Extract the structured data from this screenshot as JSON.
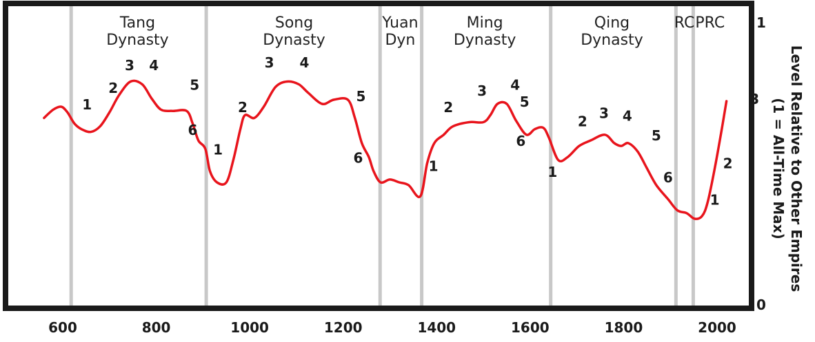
{
  "chart_data": {
    "type": "line",
    "ylabel_line1": "Level Relative to Other Empires",
    "ylabel_line2": "(1 = All-Time Max)",
    "xlim": [
      560,
      2030
    ],
    "ylim": [
      0,
      1
    ],
    "x_ticks": [
      {
        "value": 600,
        "label": "600"
      },
      {
        "value": 800,
        "label": "800"
      },
      {
        "value": 1000,
        "label": "1000"
      },
      {
        "value": 1200,
        "label": "1200"
      },
      {
        "value": 1400,
        "label": "1400"
      },
      {
        "value": 1600,
        "label": "1600"
      },
      {
        "value": 1800,
        "label": "1800"
      },
      {
        "value": 2000,
        "label": "2000"
      }
    ],
    "y_ticks": [
      {
        "value": 1,
        "label": "1"
      },
      {
        "value": 0,
        "label": "0"
      }
    ],
    "dynasty_boundaries": [
      618,
      907,
      1279,
      1368,
      1644,
      1912,
      1949
    ],
    "dynasty_labels": [
      {
        "lines": [
          "Tang",
          "Dynasty"
        ],
        "x": 760
      },
      {
        "lines": [
          "Song",
          "Dynasty"
        ],
        "x": 1095
      },
      {
        "lines": [
          "Yuan",
          "Dyn"
        ],
        "x": 1322
      },
      {
        "lines": [
          "Ming",
          "Dynasty"
        ],
        "x": 1503
      },
      {
        "lines": [
          "Qing",
          "Dynasty"
        ],
        "x": 1775
      },
      {
        "lines": [
          "RC"
        ],
        "x": 1930
      },
      {
        "lines": [
          "PRC"
        ],
        "x": 1985
      }
    ],
    "series": [
      {
        "color": "#e8141c",
        "points": [
          [
            560,
            0.66
          ],
          [
            580,
            0.69
          ],
          [
            597,
            0.7
          ],
          [
            610,
            0.68
          ],
          [
            625,
            0.64
          ],
          [
            640,
            0.62
          ],
          [
            660,
            0.61
          ],
          [
            680,
            0.63
          ],
          [
            700,
            0.68
          ],
          [
            720,
            0.74
          ],
          [
            745,
            0.79
          ],
          [
            770,
            0.78
          ],
          [
            790,
            0.73
          ],
          [
            810,
            0.69
          ],
          [
            835,
            0.685
          ],
          [
            865,
            0.685
          ],
          [
            878,
            0.64
          ],
          [
            890,
            0.58
          ],
          [
            905,
            0.55
          ],
          [
            915,
            0.47
          ],
          [
            930,
            0.43
          ],
          [
            950,
            0.43
          ],
          [
            965,
            0.51
          ],
          [
            980,
            0.62
          ],
          [
            990,
            0.67
          ],
          [
            1010,
            0.66
          ],
          [
            1030,
            0.7
          ],
          [
            1055,
            0.77
          ],
          [
            1080,
            0.79
          ],
          [
            1105,
            0.78
          ],
          [
            1125,
            0.75
          ],
          [
            1155,
            0.71
          ],
          [
            1180,
            0.725
          ],
          [
            1210,
            0.725
          ],
          [
            1225,
            0.66
          ],
          [
            1240,
            0.57
          ],
          [
            1255,
            0.52
          ],
          [
            1265,
            0.47
          ],
          [
            1280,
            0.43
          ],
          [
            1300,
            0.44
          ],
          [
            1320,
            0.43
          ],
          [
            1340,
            0.42
          ],
          [
            1365,
            0.38
          ],
          [
            1380,
            0.5
          ],
          [
            1395,
            0.57
          ],
          [
            1415,
            0.6
          ],
          [
            1435,
            0.63
          ],
          [
            1470,
            0.645
          ],
          [
            1500,
            0.645
          ],
          [
            1515,
            0.67
          ],
          [
            1530,
            0.71
          ],
          [
            1550,
            0.71
          ],
          [
            1570,
            0.65
          ],
          [
            1592,
            0.6
          ],
          [
            1610,
            0.62
          ],
          [
            1628,
            0.625
          ],
          [
            1640,
            0.59
          ],
          [
            1660,
            0.51
          ],
          [
            1680,
            0.52
          ],
          [
            1705,
            0.56
          ],
          [
            1730,
            0.58
          ],
          [
            1760,
            0.6
          ],
          [
            1780,
            0.57
          ],
          [
            1795,
            0.56
          ],
          [
            1810,
            0.57
          ],
          [
            1830,
            0.54
          ],
          [
            1850,
            0.48
          ],
          [
            1870,
            0.42
          ],
          [
            1895,
            0.37
          ],
          [
            1915,
            0.33
          ],
          [
            1935,
            0.32
          ],
          [
            1952,
            0.3
          ],
          [
            1968,
            0.31
          ],
          [
            1980,
            0.36
          ],
          [
            1995,
            0.48
          ],
          [
            2010,
            0.62
          ],
          [
            2020,
            0.72
          ]
        ]
      }
    ],
    "stage_labels": [
      {
        "text": "1",
        "x": 652,
        "y": 0.69
      },
      {
        "text": "2",
        "x": 708,
        "y": 0.75
      },
      {
        "text": "3",
        "x": 743,
        "y": 0.83
      },
      {
        "text": "4",
        "x": 795,
        "y": 0.83
      },
      {
        "text": "5",
        "x": 882,
        "y": 0.76
      },
      {
        "text": "6",
        "x": 878,
        "y": 0.6
      },
      {
        "text": "1",
        "x": 932,
        "y": 0.53
      },
      {
        "text": "2",
        "x": 985,
        "y": 0.68
      },
      {
        "text": "3",
        "x": 1042,
        "y": 0.84
      },
      {
        "text": "4",
        "x": 1117,
        "y": 0.84
      },
      {
        "text": "5",
        "x": 1238,
        "y": 0.72
      },
      {
        "text": "6",
        "x": 1232,
        "y": 0.5
      },
      {
        "text": "1",
        "x": 1393,
        "y": 0.47
      },
      {
        "text": "2",
        "x": 1425,
        "y": 0.68
      },
      {
        "text": "3",
        "x": 1497,
        "y": 0.74
      },
      {
        "text": "4",
        "x": 1568,
        "y": 0.76
      },
      {
        "text": "5",
        "x": 1588,
        "y": 0.7
      },
      {
        "text": "6",
        "x": 1580,
        "y": 0.56
      },
      {
        "text": "1",
        "x": 1648,
        "y": 0.45
      },
      {
        "text": "2",
        "x": 1712,
        "y": 0.63
      },
      {
        "text": "3",
        "x": 1758,
        "y": 0.66
      },
      {
        "text": "4",
        "x": 1808,
        "y": 0.65
      },
      {
        "text": "5",
        "x": 1870,
        "y": 0.58
      },
      {
        "text": "6",
        "x": 1895,
        "y": 0.43
      },
      {
        "text": "1",
        "x": 1995,
        "y": 0.35
      },
      {
        "text": "2",
        "x": 2023,
        "y": 0.48
      },
      {
        "text": "3",
        "x": 2080,
        "y": 0.71
      }
    ]
  }
}
